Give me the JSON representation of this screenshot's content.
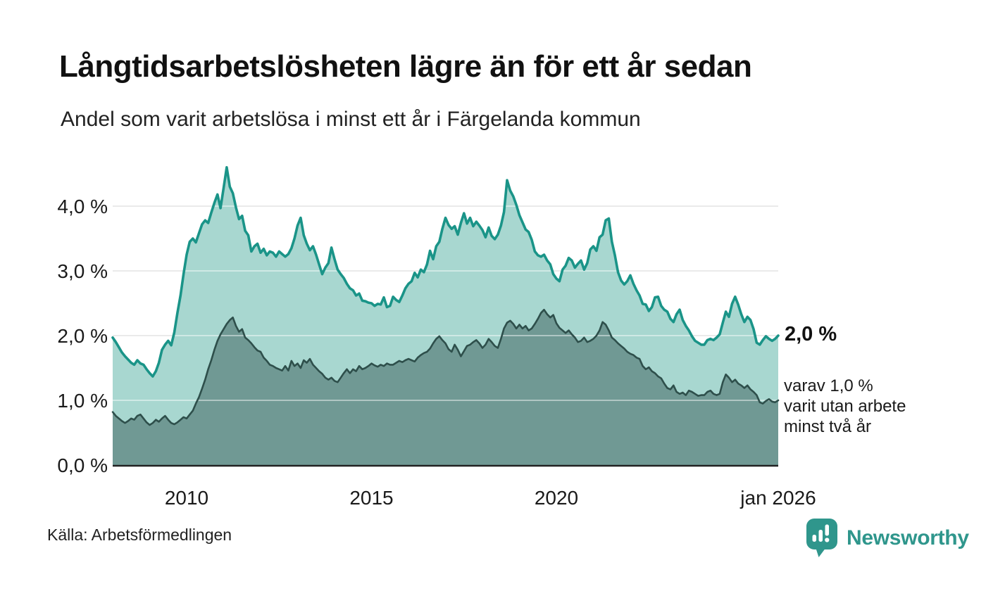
{
  "header": {
    "title": "Långtidsarbetslösheten lägre än för ett år sedan",
    "subtitle": "Andel som varit arbetslösa i minst ett år i Färgelanda kommun"
  },
  "annotations": {
    "latest_total": "2,0 %",
    "breakdown_lines": [
      "varav 1,0 %",
      "varit utan arbete",
      "minst två år"
    ]
  },
  "footer": {
    "source": "Källa: Arbetsförmedlingen",
    "brand": "Newsworthy"
  },
  "colors": {
    "series1_line": "#1a9488",
    "series1_fill": "#a8d7d0",
    "series2_line": "#2e4f4b",
    "series2_fill": "#709994",
    "gridline": "#d9d9d9",
    "gridline_overlay": "rgba(255,255,255,0.45)",
    "baseline": "#222222",
    "logo_teal": "#2f968c",
    "text": "#1a1a1a"
  },
  "chart_data": {
    "type": "area",
    "unit": "%",
    "frequency": "monthly",
    "x_start": "2008-01",
    "x_end": "2026-01",
    "ylim": [
      0,
      4.8
    ],
    "grid": "horizontal",
    "legend_position": "none",
    "x_ticks": [
      {
        "label": "2010",
        "index": 24
      },
      {
        "label": "2015",
        "index": 84
      },
      {
        "label": "2020",
        "index": 144
      },
      {
        "label": "jan 2026",
        "index": 216
      }
    ],
    "y_ticks": [
      {
        "label": "0,0 %",
        "value": 0
      },
      {
        "label": "1,0 %",
        "value": 1
      },
      {
        "label": "2,0 %",
        "value": 2
      },
      {
        "label": "3,0 %",
        "value": 3
      },
      {
        "label": "4,0 %",
        "value": 4
      }
    ],
    "series": [
      {
        "name": "Andel arbetslösa minst ett år",
        "latest_value": 2.0,
        "values": [
          1.97,
          1.9,
          1.82,
          1.74,
          1.68,
          1.63,
          1.58,
          1.55,
          1.62,
          1.57,
          1.55,
          1.48,
          1.42,
          1.37,
          1.45,
          1.58,
          1.78,
          1.86,
          1.92,
          1.85,
          2.05,
          2.35,
          2.62,
          2.95,
          3.25,
          3.45,
          3.5,
          3.44,
          3.58,
          3.72,
          3.78,
          3.74,
          3.9,
          4.05,
          4.18,
          3.97,
          4.28,
          4.6,
          4.3,
          4.2,
          3.98,
          3.8,
          3.85,
          3.62,
          3.55,
          3.3,
          3.38,
          3.42,
          3.28,
          3.34,
          3.24,
          3.3,
          3.28,
          3.22,
          3.3,
          3.26,
          3.22,
          3.26,
          3.35,
          3.5,
          3.7,
          3.82,
          3.55,
          3.42,
          3.32,
          3.38,
          3.25,
          3.1,
          2.95,
          3.05,
          3.12,
          3.36,
          3.18,
          3.02,
          2.95,
          2.89,
          2.8,
          2.73,
          2.7,
          2.62,
          2.65,
          2.54,
          2.53,
          2.51,
          2.5,
          2.46,
          2.49,
          2.48,
          2.59,
          2.44,
          2.46,
          2.6,
          2.55,
          2.52,
          2.62,
          2.73,
          2.8,
          2.84,
          2.97,
          2.9,
          3.02,
          2.98,
          3.1,
          3.31,
          3.18,
          3.38,
          3.45,
          3.65,
          3.82,
          3.71,
          3.65,
          3.69,
          3.56,
          3.74,
          3.89,
          3.73,
          3.82,
          3.69,
          3.76,
          3.7,
          3.63,
          3.52,
          3.67,
          3.54,
          3.49,
          3.56,
          3.7,
          3.91,
          4.4,
          4.24,
          4.15,
          4.02,
          3.86,
          3.75,
          3.64,
          3.6,
          3.48,
          3.3,
          3.24,
          3.22,
          3.25,
          3.16,
          3.1,
          2.95,
          2.88,
          2.84,
          3.02,
          3.08,
          3.2,
          3.16,
          3.05,
          3.11,
          3.16,
          3.02,
          3.12,
          3.33,
          3.38,
          3.31,
          3.52,
          3.56,
          3.78,
          3.81,
          3.45,
          3.24,
          2.98,
          2.85,
          2.79,
          2.84,
          2.93,
          2.8,
          2.7,
          2.62,
          2.49,
          2.48,
          2.38,
          2.44,
          2.59,
          2.6,
          2.46,
          2.4,
          2.37,
          2.26,
          2.21,
          2.33,
          2.4,
          2.24,
          2.15,
          2.08,
          1.99,
          1.92,
          1.89,
          1.86,
          1.86,
          1.93,
          1.95,
          1.93,
          1.97,
          2.02,
          2.2,
          2.37,
          2.29,
          2.49,
          2.6,
          2.48,
          2.33,
          2.21,
          2.29,
          2.24,
          2.1,
          1.89,
          1.86,
          1.93,
          1.99,
          1.95,
          1.92,
          1.95,
          2.0
        ]
      },
      {
        "name": "varav utan arbete minst två år",
        "latest_value": 1.0,
        "values": [
          0.82,
          0.76,
          0.72,
          0.68,
          0.65,
          0.68,
          0.72,
          0.7,
          0.76,
          0.78,
          0.72,
          0.66,
          0.62,
          0.65,
          0.7,
          0.67,
          0.72,
          0.76,
          0.7,
          0.65,
          0.63,
          0.66,
          0.7,
          0.74,
          0.72,
          0.78,
          0.84,
          0.95,
          1.05,
          1.18,
          1.32,
          1.48,
          1.62,
          1.78,
          1.92,
          2.02,
          2.1,
          2.18,
          2.24,
          2.28,
          2.15,
          2.06,
          2.1,
          1.97,
          1.93,
          1.88,
          1.82,
          1.77,
          1.75,
          1.66,
          1.61,
          1.55,
          1.53,
          1.5,
          1.48,
          1.46,
          1.53,
          1.46,
          1.61,
          1.53,
          1.57,
          1.5,
          1.62,
          1.58,
          1.64,
          1.55,
          1.5,
          1.45,
          1.41,
          1.35,
          1.32,
          1.35,
          1.3,
          1.28,
          1.35,
          1.42,
          1.48,
          1.42,
          1.48,
          1.45,
          1.53,
          1.48,
          1.5,
          1.53,
          1.57,
          1.54,
          1.52,
          1.55,
          1.53,
          1.57,
          1.55,
          1.55,
          1.58,
          1.61,
          1.59,
          1.62,
          1.64,
          1.62,
          1.6,
          1.66,
          1.7,
          1.73,
          1.75,
          1.8,
          1.88,
          1.95,
          1.99,
          1.93,
          1.88,
          1.79,
          1.75,
          1.86,
          1.78,
          1.68,
          1.76,
          1.84,
          1.86,
          1.9,
          1.93,
          1.88,
          1.81,
          1.86,
          1.95,
          1.9,
          1.84,
          1.81,
          1.95,
          2.11,
          2.2,
          2.23,
          2.18,
          2.11,
          2.17,
          2.11,
          2.15,
          2.08,
          2.11,
          2.18,
          2.26,
          2.35,
          2.4,
          2.33,
          2.28,
          2.32,
          2.19,
          2.12,
          2.08,
          2.04,
          2.08,
          2.02,
          1.97,
          1.9,
          1.92,
          1.97,
          1.9,
          1.92,
          1.95,
          2.0,
          2.08,
          2.21,
          2.17,
          2.08,
          1.97,
          1.93,
          1.88,
          1.84,
          1.8,
          1.75,
          1.72,
          1.7,
          1.66,
          1.64,
          1.53,
          1.48,
          1.51,
          1.45,
          1.42,
          1.37,
          1.34,
          1.26,
          1.19,
          1.17,
          1.23,
          1.13,
          1.1,
          1.12,
          1.08,
          1.15,
          1.13,
          1.1,
          1.07,
          1.08,
          1.08,
          1.13,
          1.15,
          1.1,
          1.08,
          1.1,
          1.28,
          1.4,
          1.35,
          1.28,
          1.32,
          1.26,
          1.23,
          1.19,
          1.23,
          1.17,
          1.13,
          1.08,
          0.97,
          0.95,
          0.99,
          1.02,
          0.98,
          0.97,
          1.0
        ]
      }
    ]
  }
}
